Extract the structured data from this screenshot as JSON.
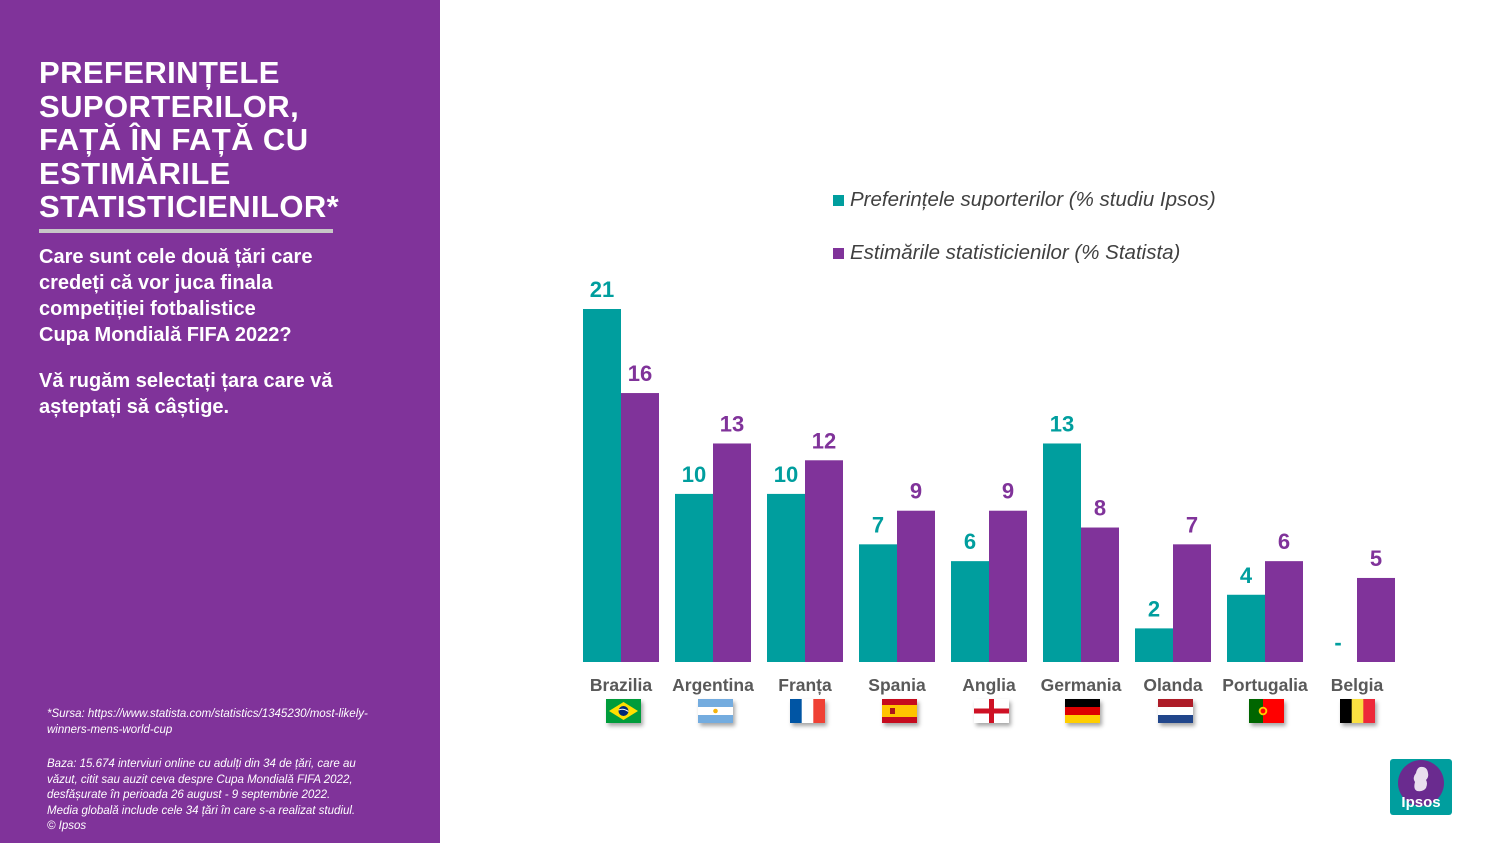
{
  "sidebar": {
    "title_lines": [
      "PREFERINȚELE",
      "SUPORTERILOR,",
      "FAȚĂ ÎN FAȚĂ CU",
      "ESTIMĂRILE",
      "STATISTICIENILOR*"
    ],
    "question_lines": [
      "Care sunt cele două țări care",
      "credeți că vor juca finala",
      "competiției fotbalistice",
      "Cupa Mondială FIFA 2022?"
    ],
    "instruction": "Vă rugăm selectați țara care vă așteptați să câștige.",
    "source_lines": [
      "*Sursa: https://www.statista.com/statistics/1345230/most-likely-",
      "winners-mens-world-cup"
    ],
    "base_lines": [
      "Baza: 15.674 interviuri online cu adulți din 34 de țări, care au",
      "văzut, citit sau auzit ceva despre Cupa Mondială FIFA 2022,",
      "desfășurate în perioada 26 august - 9 septembrie 2022.",
      "Media globală include cele 34 țări în care s-a realizat studiul.",
      "© Ipsos"
    ]
  },
  "chart_data": {
    "type": "bar",
    "categories": [
      "Brazilia",
      "Argentina",
      "Franța",
      "Spania",
      "Anglia",
      "Germania",
      "Olanda",
      "Portugalia",
      "Belgia"
    ],
    "series": [
      {
        "name": "Preferințele suporterilor (% studiu Ipsos)",
        "color": "#009e9e",
        "values": [
          21,
          10,
          10,
          7,
          6,
          13,
          2,
          4,
          null
        ],
        "labels": [
          "21",
          "10",
          "10",
          "7",
          "6",
          "13",
          "2",
          "4",
          "-"
        ]
      },
      {
        "name": "Estimările statisticienilor (% Statista)",
        "color": "#80339a",
        "values": [
          16,
          13,
          12,
          9,
          9,
          8,
          7,
          6,
          5
        ],
        "labels": [
          "16",
          "13",
          "12",
          "9",
          "9",
          "8",
          "7",
          "6",
          "5"
        ]
      }
    ],
    "ylim": [
      0,
      21
    ],
    "legend": "top-right",
    "grid": false
  },
  "flags": [
    "brazil-flag",
    "argentina-flag",
    "france-flag",
    "spain-flag",
    "england-flag",
    "germany-flag",
    "netherlands-flag",
    "portugal-flag",
    "belgium-flag"
  ],
  "logo": {
    "text": "Ipsos"
  },
  "colors": {
    "purple": "#80339a",
    "teal": "#009e9e"
  }
}
